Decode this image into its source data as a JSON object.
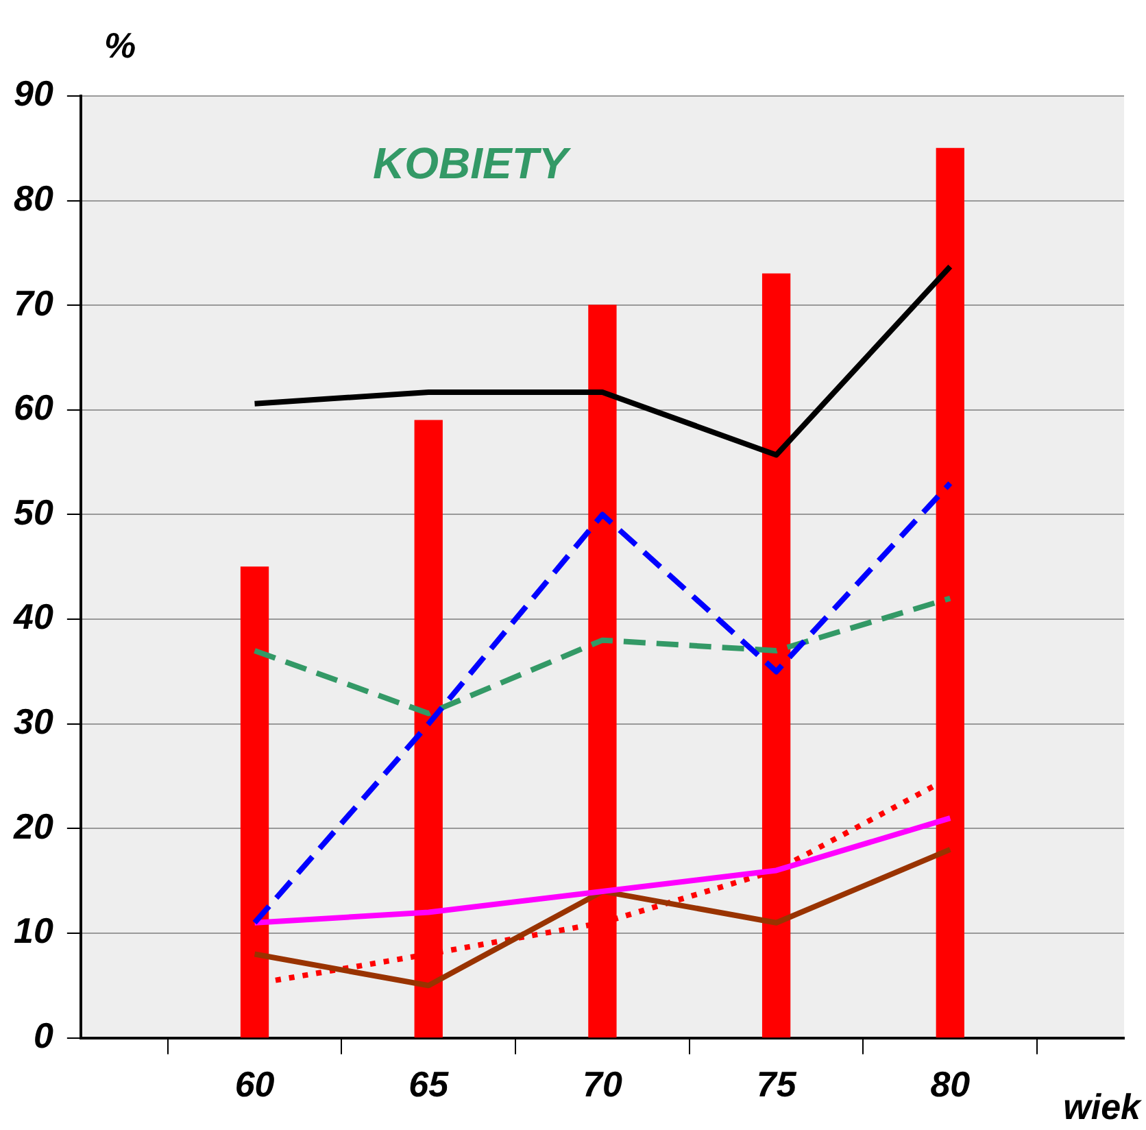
{
  "chart_data": {
    "type": "bar",
    "title": "KOBIETY",
    "xlabel": "wiek",
    "ylabel": "%",
    "x": [
      60,
      65,
      70,
      75,
      80
    ],
    "xlim": [
      55,
      85
    ],
    "xticks": [
      60,
      65,
      70,
      75,
      80
    ],
    "ylim": [
      0,
      90
    ],
    "yticks": [
      0,
      10,
      20,
      30,
      40,
      50,
      60,
      70,
      80,
      90
    ],
    "grid": "y",
    "legend": false,
    "marker": "none",
    "series": [
      {
        "color": "#ff0000",
        "values": [
          45,
          59,
          70,
          73,
          85
        ]
      },
      {
        "type": "line",
        "color": "#000000",
        "line_style": "solid",
        "values": [
          60.6,
          61.7,
          61.7,
          55.7,
          73.7
        ]
      },
      {
        "type": "line",
        "color": "#0000ff",
        "line_style": "dashed",
        "values": [
          11,
          30,
          50,
          35,
          53
        ]
      },
      {
        "type": "line",
        "color": "#339966",
        "line_style": "dashed",
        "values": [
          37,
          31,
          38,
          37,
          42
        ]
      },
      {
        "type": "line",
        "color": "#ff00ff",
        "line_style": "solid",
        "values": [
          11,
          12,
          14,
          16,
          21
        ]
      },
      {
        "type": "line",
        "color": "#993300",
        "line_style": "solid",
        "values": [
          8,
          5,
          14,
          11,
          18
        ]
      },
      {
        "type": "line",
        "color": "#ff0000",
        "line_style": "dotted",
        "x": [
          60.6,
          65,
          70,
          75,
          79.5
        ],
        "values": [
          5.5,
          8,
          11,
          16,
          24
        ]
      }
    ]
  }
}
